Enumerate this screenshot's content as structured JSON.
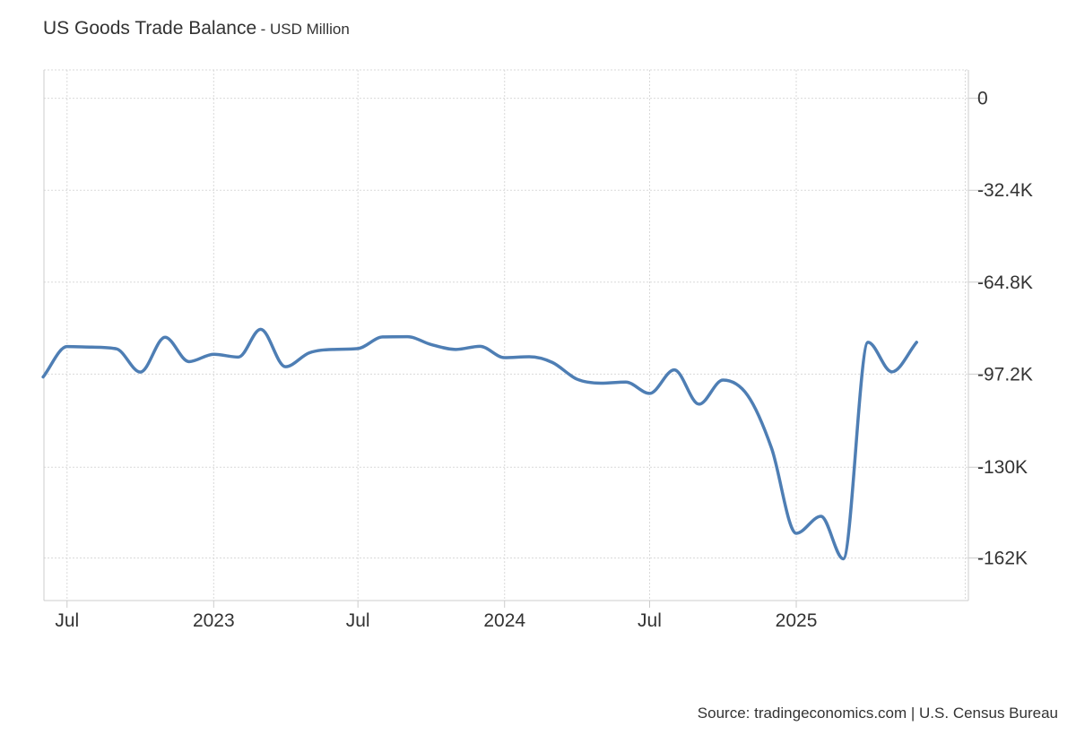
{
  "chart_data": {
    "type": "line",
    "title": "US Goods Trade Balance",
    "subtitle": "USD Million",
    "xlabel": "",
    "ylabel": "",
    "grid": true,
    "y_axis_position": "right",
    "ylim": [
      -177000,
      10000
    ],
    "yticks": [
      {
        "value": 0,
        "label": "0"
      },
      {
        "value": -32400,
        "label": "-32.4K"
      },
      {
        "value": -64800,
        "label": "-64.8K"
      },
      {
        "value": -97200,
        "label": "-97.2K"
      },
      {
        "value": -130000,
        "label": "-130K"
      },
      {
        "value": -162000,
        "label": "-162K"
      }
    ],
    "xlim": [
      "2022-06-02",
      "2025-08-05"
    ],
    "xticks": [
      {
        "date": "2022-07-01",
        "label": "Jul"
      },
      {
        "date": "2023-01-01",
        "label": "2023"
      },
      {
        "date": "2023-07-01",
        "label": "Jul"
      },
      {
        "date": "2024-01-01",
        "label": "2024"
      },
      {
        "date": "2024-07-01",
        "label": "Jul"
      },
      {
        "date": "2025-01-01",
        "label": "2025"
      }
    ],
    "x_grid_dates": [
      "2022-06-01",
      "2022-07-01",
      "2023-01-01",
      "2023-07-01",
      "2024-01-01",
      "2024-07-01",
      "2025-01-01",
      "2025-08-01"
    ],
    "series": [
      {
        "color": "#4e7eb4",
        "points": [
          {
            "date": "2022-06-01",
            "value": -98200
          },
          {
            "date": "2022-07-01",
            "value": -87500
          },
          {
            "date": "2022-08-01",
            "value": -87700
          },
          {
            "date": "2022-09-01",
            "value": -88300
          },
          {
            "date": "2022-10-01",
            "value": -96500
          },
          {
            "date": "2022-11-01",
            "value": -84200
          },
          {
            "date": "2022-12-01",
            "value": -92800
          },
          {
            "date": "2023-01-01",
            "value": -90200
          },
          {
            "date": "2023-02-01",
            "value": -91200
          },
          {
            "date": "2023-03-01",
            "value": -81400
          },
          {
            "date": "2023-04-01",
            "value": -94600
          },
          {
            "date": "2023-05-01",
            "value": -89700
          },
          {
            "date": "2023-06-01",
            "value": -88500
          },
          {
            "date": "2023-07-01",
            "value": -88200
          },
          {
            "date": "2023-08-01",
            "value": -84100
          },
          {
            "date": "2023-09-01",
            "value": -84000
          },
          {
            "date": "2023-10-01",
            "value": -86800
          },
          {
            "date": "2023-11-01",
            "value": -88500
          },
          {
            "date": "2023-12-01",
            "value": -87400
          },
          {
            "date": "2024-01-01",
            "value": -91400
          },
          {
            "date": "2024-02-01",
            "value": -91100
          },
          {
            "date": "2024-03-01",
            "value": -93100
          },
          {
            "date": "2024-04-01",
            "value": -99000
          },
          {
            "date": "2024-05-01",
            "value": -100400
          },
          {
            "date": "2024-06-01",
            "value": -100000
          },
          {
            "date": "2024-07-01",
            "value": -104000
          },
          {
            "date": "2024-08-01",
            "value": -95700
          },
          {
            "date": "2024-09-01",
            "value": -107800
          },
          {
            "date": "2024-10-01",
            "value": -99300
          },
          {
            "date": "2024-11-01",
            "value": -104700
          },
          {
            "date": "2024-12-01",
            "value": -123300
          },
          {
            "date": "2025-01-01",
            "value": -153300
          },
          {
            "date": "2025-02-01",
            "value": -147300
          },
          {
            "date": "2025-03-01",
            "value": -162300
          },
          {
            "date": "2025-04-01",
            "value": -86000
          },
          {
            "date": "2025-05-01",
            "value": -96400
          },
          {
            "date": "2025-06-01",
            "value": -86000
          }
        ]
      }
    ]
  },
  "source": "Source: tradingeconomics.com | U.S. Census Bureau"
}
